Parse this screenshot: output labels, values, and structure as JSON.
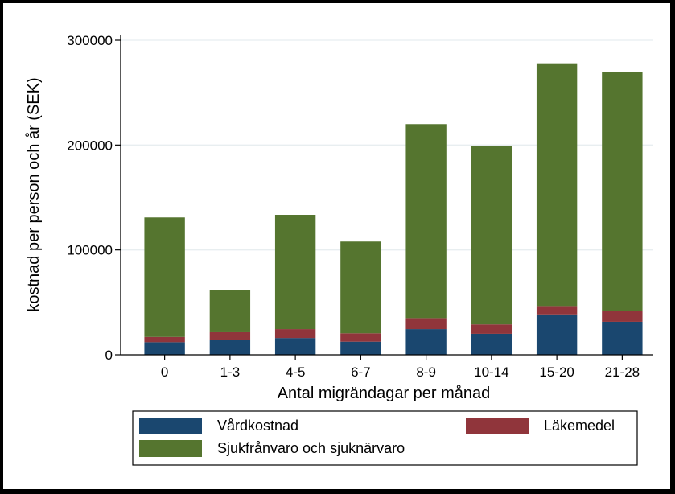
{
  "chart_data": {
    "type": "bar",
    "stacked": true,
    "title": "",
    "xlabel": "Antal migrändagar per månad",
    "ylabel": "kostnad per person och år (SEK)",
    "ylim": [
      0,
      300000
    ],
    "yticks": [
      0,
      100000,
      200000,
      300000
    ],
    "ytick_labels": [
      "0",
      "100000",
      "200000",
      "300000"
    ],
    "grid": true,
    "legend_placement": "bottom",
    "categories": [
      "0",
      "1-3",
      "4-5",
      "6-7",
      "8-9",
      "10-14",
      "15-20",
      "21-28"
    ],
    "series": [
      {
        "name": "Vårdkostnad",
        "color": "#1a476f",
        "values": [
          12000,
          14000,
          16000,
          12500,
          24500,
          20000,
          38500,
          31500
        ]
      },
      {
        "name": "Läkemedel",
        "color": "#90353b",
        "values": [
          5000,
          7500,
          8500,
          8000,
          10500,
          9000,
          8000,
          10000
        ]
      },
      {
        "name": "Sjukfrånvaro och sjuknärvaro",
        "color": "#55752f",
        "values": [
          114000,
          40000,
          109000,
          87500,
          185000,
          170000,
          231500,
          228500
        ]
      }
    ]
  }
}
